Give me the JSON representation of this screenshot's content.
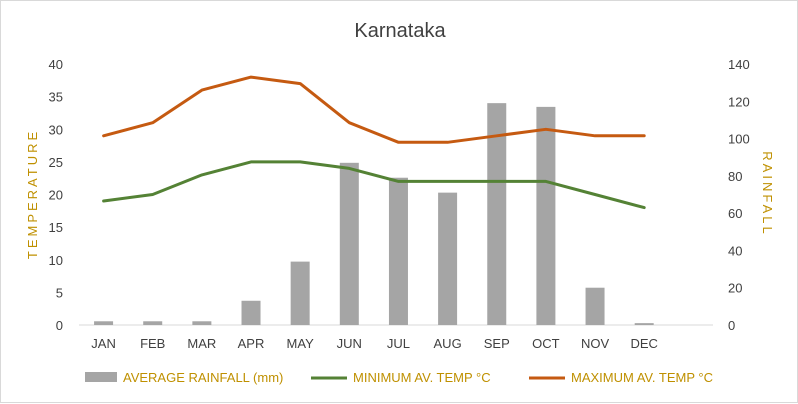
{
  "chart_data": {
    "type": "bar+line",
    "title": "Karnataka",
    "categories": [
      "JAN",
      "FEB",
      "MAR",
      "APR",
      "MAY",
      "JUN",
      "JUL",
      "AUG",
      "SEP",
      "OCT",
      "NOV",
      "DEC"
    ],
    "y_left": {
      "label": "TEMPERATURE",
      "min": 0,
      "max": 40,
      "ticks": [
        0,
        5,
        10,
        15,
        20,
        25,
        30,
        35,
        40
      ]
    },
    "y_right": {
      "label": "RAINFALL",
      "min": 0,
      "max": 140,
      "ticks": [
        0,
        20,
        40,
        60,
        80,
        100,
        120,
        140
      ]
    },
    "series": [
      {
        "name": "AVERAGE RAINFALL (mm)",
        "type": "bar",
        "axis": "right",
        "color": "#a5a5a5",
        "values": [
          2,
          2,
          2,
          13,
          34,
          87,
          79,
          71,
          119,
          117,
          20,
          1
        ]
      },
      {
        "name": "MINIMUM AV. TEMP °C",
        "type": "line",
        "axis": "left",
        "color": "#548235",
        "values": [
          19,
          20,
          23,
          25,
          25,
          24,
          22,
          22,
          22,
          22,
          20,
          18
        ]
      },
      {
        "name": "MAXIMUM AV. TEMP °C",
        "type": "line",
        "axis": "left",
        "color": "#c55a11",
        "values": [
          29,
          31,
          36,
          38,
          37,
          31,
          28,
          28,
          29,
          30,
          29,
          29
        ]
      }
    ],
    "grid": false,
    "legend_position": "bottom"
  }
}
